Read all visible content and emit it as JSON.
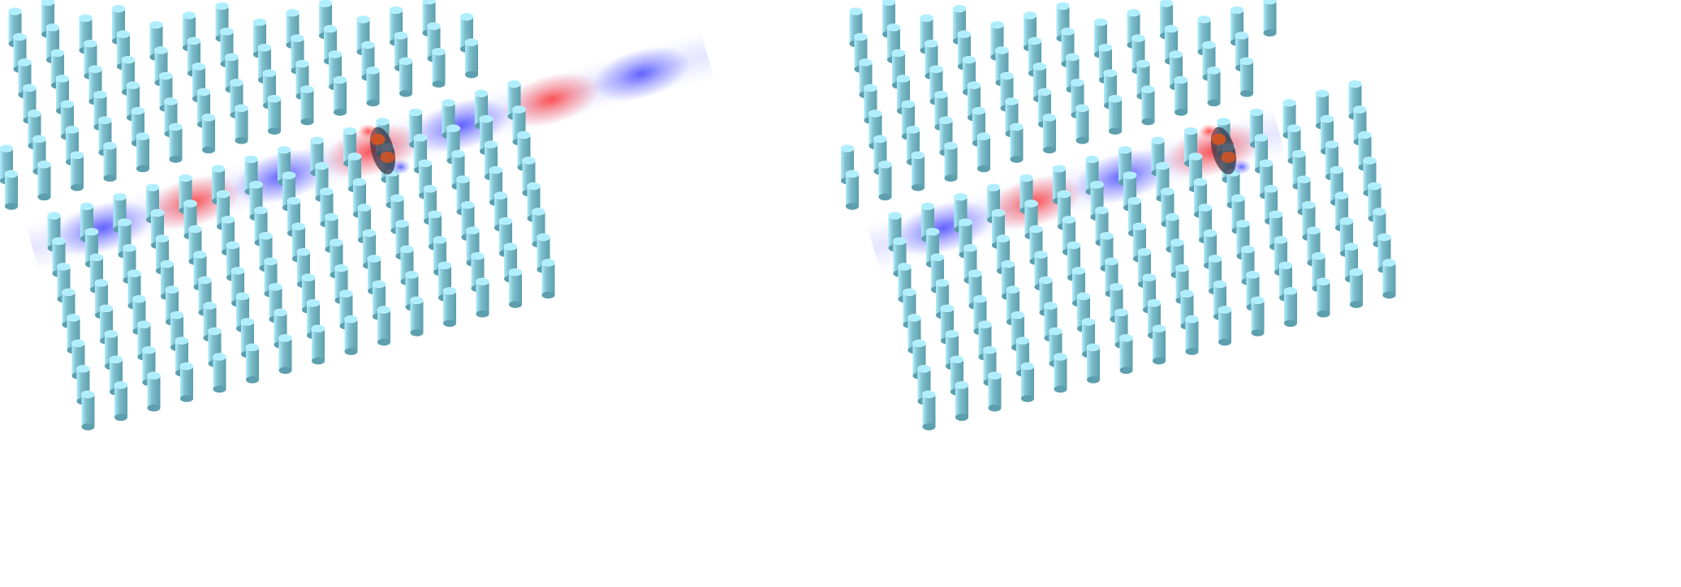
{
  "figure": {
    "panels": [
      {
        "id": "left",
        "lattice": "continuous",
        "field_pattern": [
          "blue",
          "red",
          "blue",
          "red",
          "blue",
          "red",
          "blue"
        ],
        "defect_cavity": true
      },
      {
        "id": "right",
        "lattice": "with-waveguide-break",
        "field_pattern": [
          "blue",
          "red",
          "blue",
          "red"
        ],
        "defect_cavity": true
      }
    ],
    "colors": {
      "pillar_body": "#7fbecb",
      "pillar_shade": "#5d9fae",
      "pillar_top": "#aeeeff",
      "field_blue": "#5a5cff",
      "field_red": "#ff4a4a",
      "cavity_dark": "#3b3545",
      "cavity_orange": "#e0531b",
      "background": "#ffffff"
    }
  }
}
